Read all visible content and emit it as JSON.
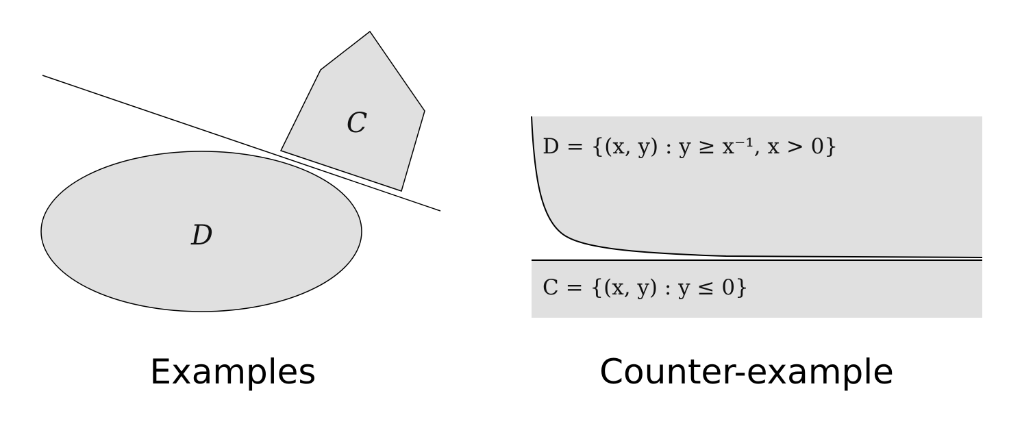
{
  "left_panel": {
    "caption": "Examples",
    "set_c_label": "C",
    "set_d_label": "D"
  },
  "right_panel": {
    "caption": "Counter-example",
    "set_d_definition": "D = {(x, y) : y ≥ x⁻¹, x > 0}",
    "set_c_definition": "C = {(x, y) : y ≤ 0}"
  },
  "colors": {
    "region_fill": "#e0e0e0",
    "stroke": "#000000"
  }
}
